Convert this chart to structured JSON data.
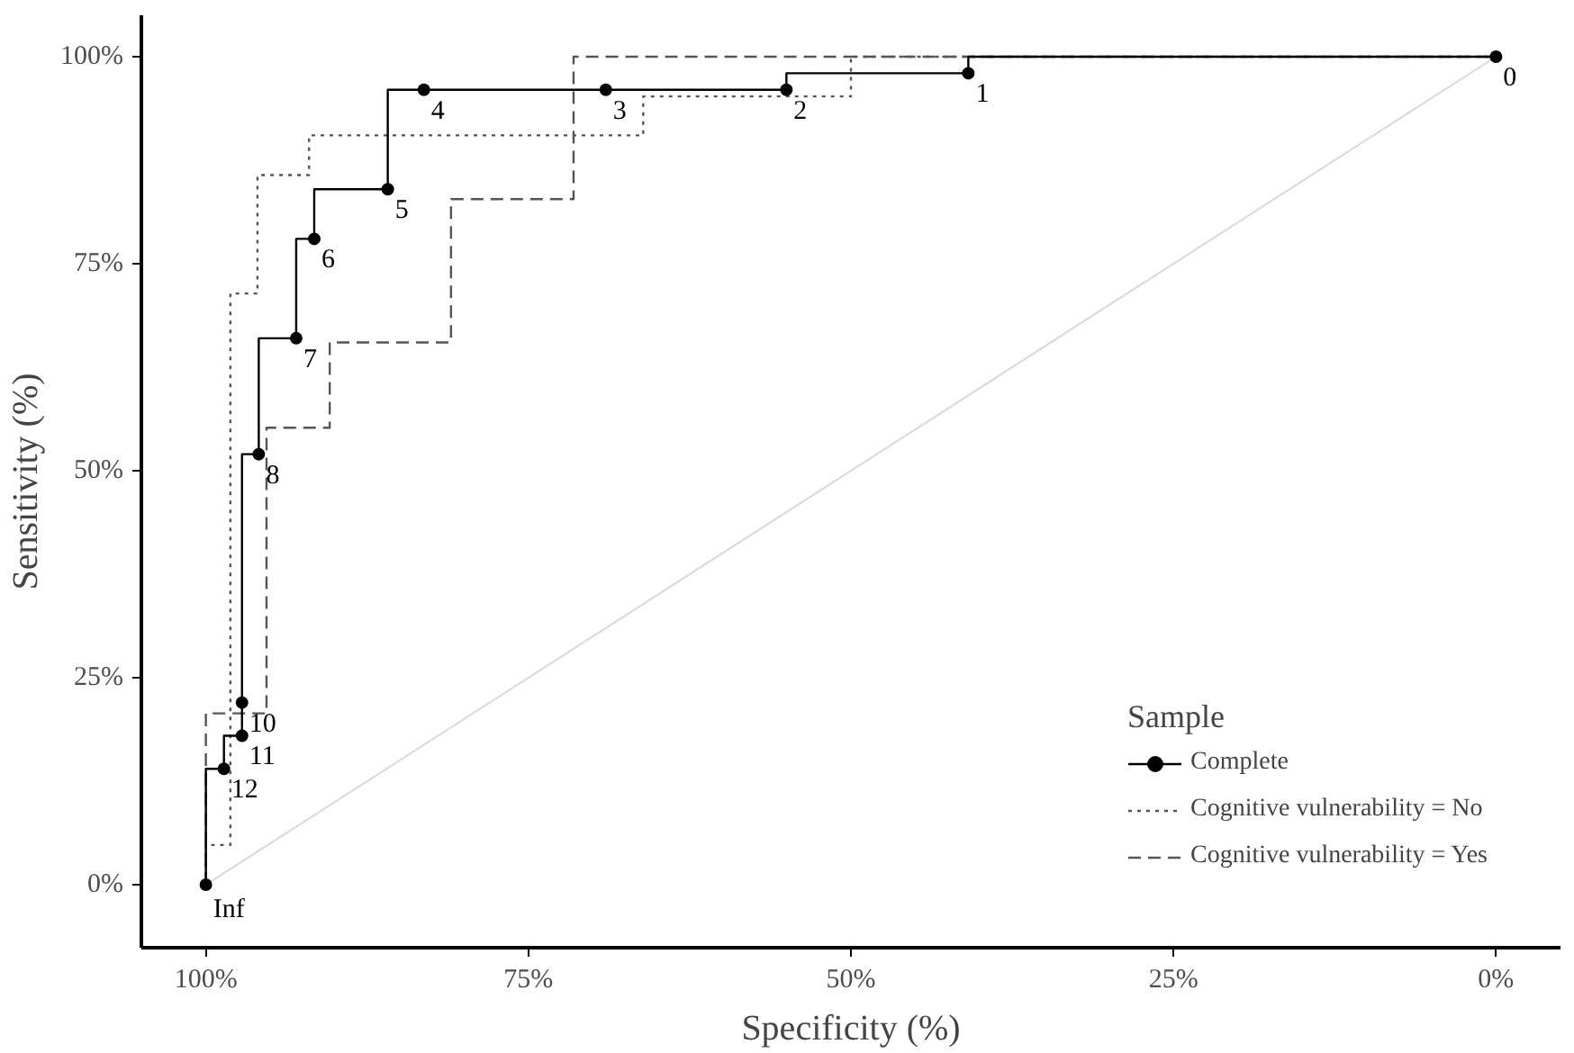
{
  "chart_data": {
    "type": "step",
    "xlabel": "Specificity (%)",
    "ylabel": "Sensitivity (%)",
    "legend_title": "Sample",
    "legend": "bottom right",
    "grid": false,
    "xlim": [
      105,
      -5
    ],
    "ylim": [
      -7.6,
      105
    ],
    "xticks": [
      {
        "value": 100,
        "label": "100%"
      },
      {
        "value": 75,
        "label": "75%"
      },
      {
        "value": 50,
        "label": "50%"
      },
      {
        "value": 25,
        "label": "25%"
      },
      {
        "value": 0,
        "label": "0%"
      }
    ],
    "yticks": [
      {
        "value": 0,
        "label": "0%"
      },
      {
        "value": 25,
        "label": "25%"
      },
      {
        "value": 50,
        "label": "50%"
      },
      {
        "value": 75,
        "label": "75%"
      },
      {
        "value": 100,
        "label": "100%"
      }
    ],
    "series": [
      {
        "type": "line",
        "color": "#d9d9d9",
        "line_style": "solid",
        "marker": "none",
        "x": [
          100,
          0
        ],
        "values": [
          0,
          100
        ]
      },
      {
        "name": "Cognitive vulnerability = No",
        "color": "#555555",
        "line_style": "dotted",
        "marker": "none",
        "x": [
          100,
          98.1,
          96.0,
          92.0,
          66.1,
          50.0,
          0
        ],
        "values": [
          0,
          4.8,
          71.4,
          85.7,
          90.5,
          95.2,
          100
        ]
      },
      {
        "name": "Cognitive vulnerability = Yes",
        "color": "#555555",
        "line_style": "dashed",
        "marker": "none",
        "x": [
          100,
          95.3,
          90.4,
          81.0,
          71.5,
          0
        ],
        "values": [
          0,
          20.7,
          55.2,
          65.5,
          82.8,
          100
        ]
      },
      {
        "name": "Complete",
        "color": "#000000",
        "line_style": "solid",
        "marker": "circle",
        "x": [
          100,
          98.6,
          97.2,
          97.2,
          95.9,
          93.0,
          91.6,
          85.9,
          83.1,
          69.0,
          55.0,
          40.9,
          0
        ],
        "values": [
          0,
          14,
          18,
          22,
          52,
          66,
          78,
          84,
          96,
          96,
          96,
          98,
          100
        ]
      }
    ],
    "annotations": [
      {
        "text": "Inf",
        "x": 100,
        "y": 0
      },
      {
        "text": "12",
        "x": 98.6,
        "y": 14
      },
      {
        "text": "11",
        "x": 97.2,
        "y": 18
      },
      {
        "text": "10",
        "x": 97.2,
        "y": 22
      },
      {
        "text": "8",
        "x": 95.9,
        "y": 52
      },
      {
        "text": "7",
        "x": 93.0,
        "y": 66
      },
      {
        "text": "6",
        "x": 91.6,
        "y": 78
      },
      {
        "text": "5",
        "x": 85.9,
        "y": 84
      },
      {
        "text": "4",
        "x": 83.1,
        "y": 96
      },
      {
        "text": "3",
        "x": 69.0,
        "y": 96
      },
      {
        "text": "2",
        "x": 55.0,
        "y": 96
      },
      {
        "text": "1",
        "x": 40.9,
        "y": 98
      },
      {
        "text": "0",
        "x": 0,
        "y": 100
      }
    ]
  }
}
